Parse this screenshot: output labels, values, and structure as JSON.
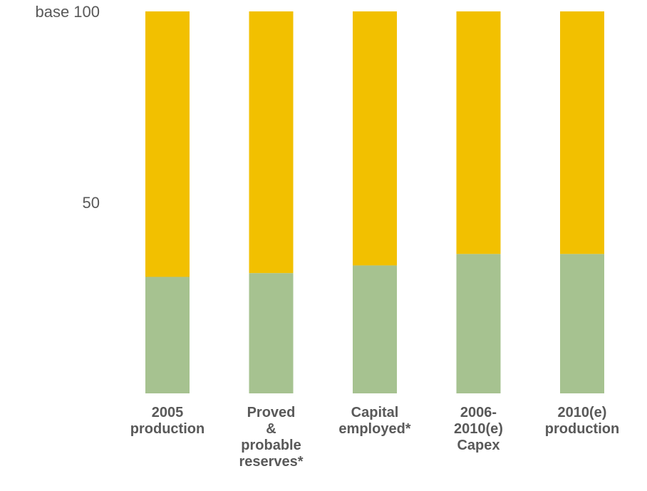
{
  "chart_data": {
    "type": "bar",
    "stacked": true,
    "title": "",
    "xlabel": "",
    "ylabel": "",
    "ylim": [
      0,
      100
    ],
    "y_ticks": [
      {
        "value": 100,
        "label": "base 100"
      },
      {
        "value": 50,
        "label": "50"
      }
    ],
    "grid": false,
    "categories": [
      [
        "2005",
        "production"
      ],
      [
        "Proved",
        "&",
        "probable",
        "reserves*"
      ],
      [
        "Capital",
        "employed*"
      ],
      [
        "2006-",
        "2010(e)",
        "Capex"
      ],
      [
        "2010(e)",
        "production"
      ]
    ],
    "series": [
      {
        "values": [
          30.5,
          31.5,
          33.5,
          36.5,
          36.5
        ],
        "color": "#a6c290"
      },
      {
        "values": [
          69.5,
          68.5,
          66.5,
          63.5,
          63.5
        ],
        "color": "#f2c000"
      }
    ]
  }
}
